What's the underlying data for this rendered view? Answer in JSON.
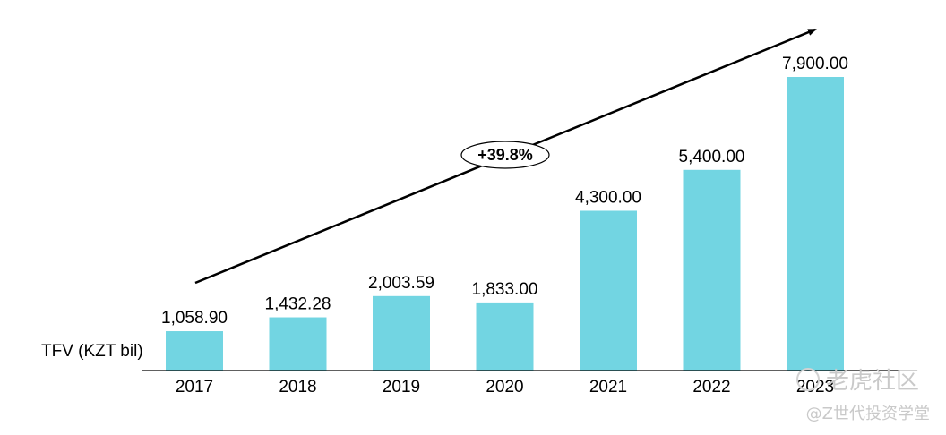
{
  "chart_data": {
    "type": "bar",
    "categories": [
      "2017",
      "2018",
      "2019",
      "2020",
      "2021",
      "2022",
      "2023"
    ],
    "values": [
      1058.9,
      1432.28,
      2003.59,
      1833.0,
      4300.0,
      5400.0,
      7900.0
    ],
    "value_labels": [
      "1,058.90",
      "1,432.28",
      "2,003.59",
      "1,833.00",
      "4,300.00",
      "5,400.00",
      "7,900.00"
    ],
    "ylabel": "TFV (KZT bil)",
    "ylim": [
      0,
      7900
    ],
    "grid": false,
    "legend": "none",
    "annotation": "+39.8%",
    "bar_color": "#72d5e2"
  },
  "watermark": {
    "line1": "老虎社区",
    "line2": "@Z世代投资学堂"
  }
}
